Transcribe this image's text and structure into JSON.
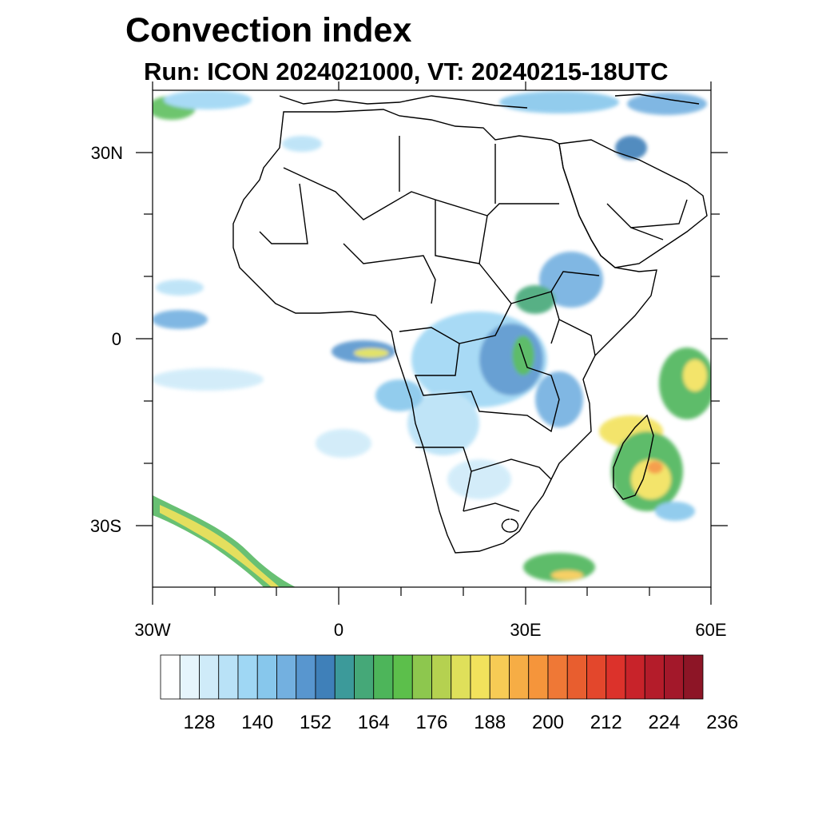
{
  "title": "Convection index",
  "subtitle": "Run: ICON 2024021000,  VT: 20240215-18UTC",
  "axes": {
    "lat_labels": [
      "30N",
      "0",
      "30S"
    ],
    "lon_labels": [
      "30W",
      "0",
      "30E",
      "60E"
    ],
    "lat_range": [
      -40,
      40
    ],
    "lon_range": [
      -30,
      60
    ]
  },
  "colorbar": {
    "labels": [
      "128",
      "140",
      "152",
      "164",
      "176",
      "188",
      "200",
      "212",
      "224",
      "236"
    ],
    "colors": [
      "#ffffff",
      "#e6f5fc",
      "#cfebf9",
      "#b9e2f7",
      "#9fd7f4",
      "#87c7ec",
      "#73b0e0",
      "#5896cf",
      "#3f80b9",
      "#3c9a9a",
      "#45a878",
      "#4db55a",
      "#5cbf4b",
      "#8dc74e",
      "#b5d150",
      "#dfe05a",
      "#f2e25c",
      "#f7cb55",
      "#f6ad45",
      "#f5953b",
      "#ef7836",
      "#e85e2f",
      "#e3472c",
      "#dc322b",
      "#c8232a",
      "#b41c2a",
      "#a3182a",
      "#8d1526"
    ]
  },
  "map_features": {
    "coastline": "Africa and Arabian Peninsula outline",
    "rain_areas": [
      "Central Africa",
      "Madagascar",
      "Southern Ocean band",
      "Gulf of Guinea",
      "Ethiopian Highlands"
    ]
  }
}
